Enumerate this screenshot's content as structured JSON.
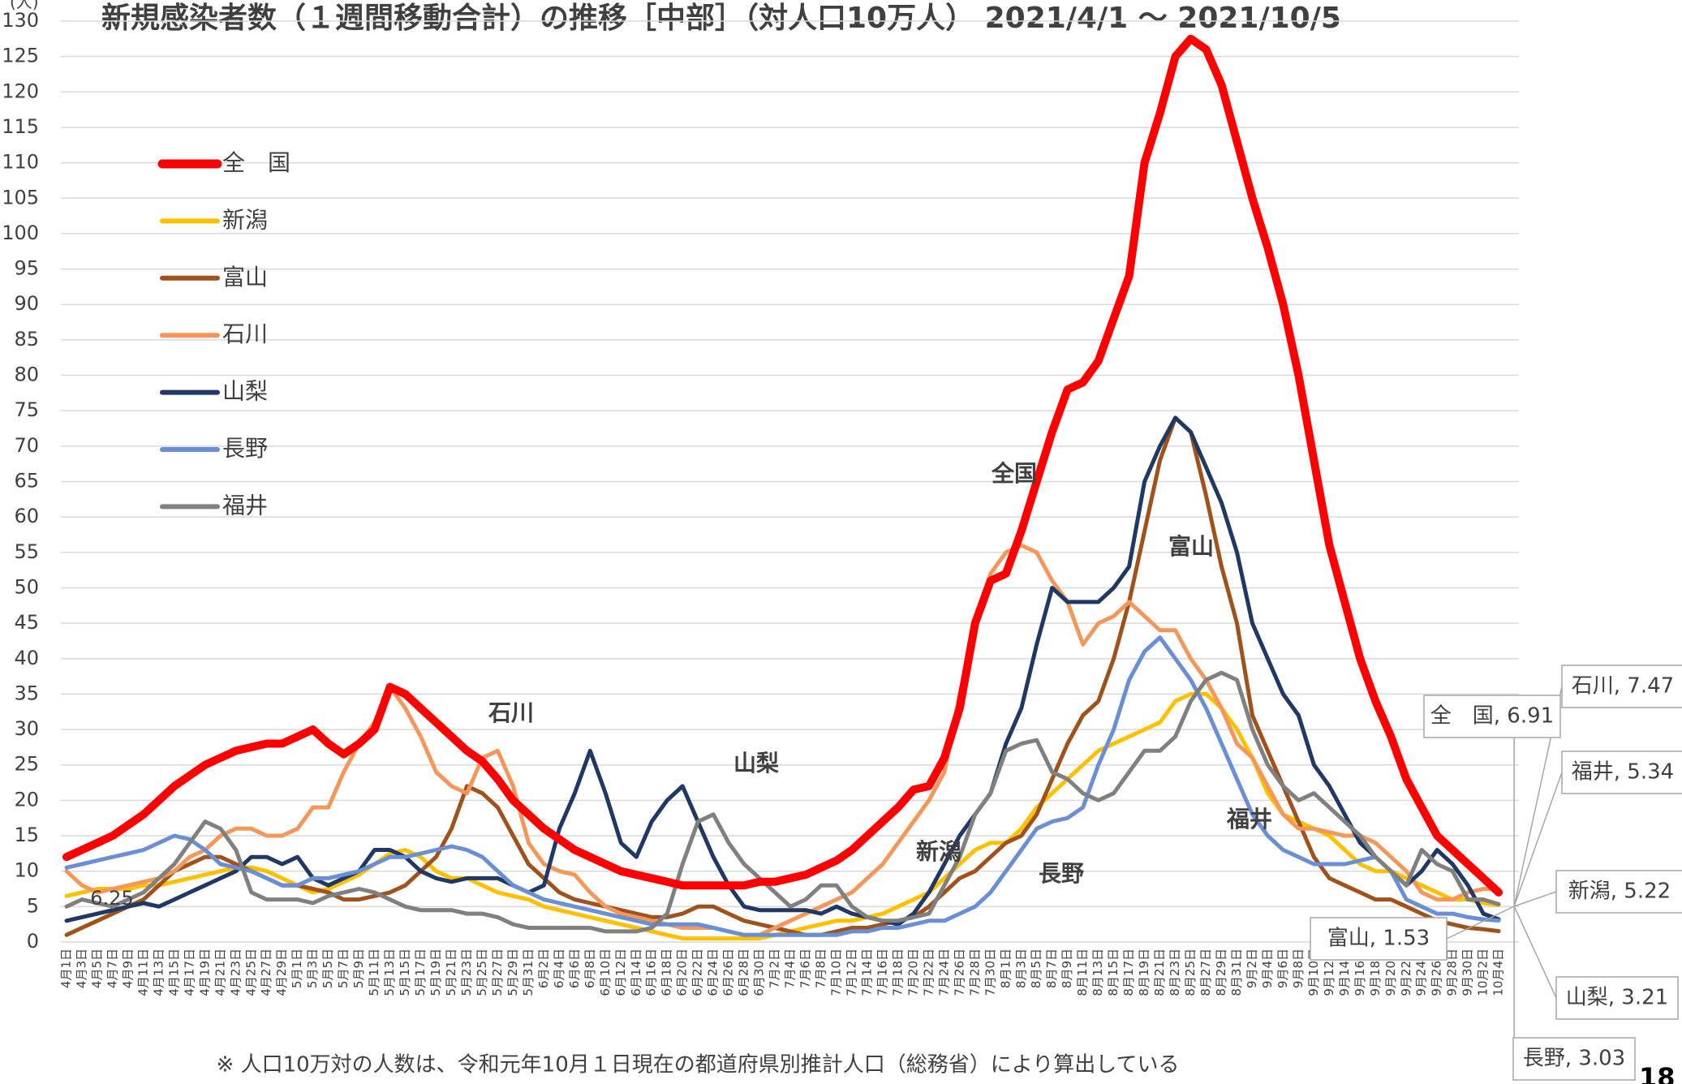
{
  "chart_data": {
    "type": "line",
    "title": "新規感染者数（１週間移動合計）の推移［中部］（対人口10万人） 2021/4/1 ～ 2021/10/5",
    "y_label": "(人)",
    "footnote": "※ 人口10万対の人数は、令和元年10月１日現在の都道府県別推計人口（総務省）により算出している",
    "page_number": "18",
    "categories": [
      "4月1日",
      "4月3日",
      "4月5日",
      "4月7日",
      "4月9日",
      "4月11日",
      "4月13日",
      "4月15日",
      "4月17日",
      "4月19日",
      "4月21日",
      "4月23日",
      "4月25日",
      "4月27日",
      "4月29日",
      "5月1日",
      "5月3日",
      "5月5日",
      "5月7日",
      "5月9日",
      "5月11日",
      "5月13日",
      "5月15日",
      "5月17日",
      "5月19日",
      "5月21日",
      "5月23日",
      "5月25日",
      "5月27日",
      "5月29日",
      "5月31日",
      "6月2日",
      "6月4日",
      "6月6日",
      "6月8日",
      "6月10日",
      "6月12日",
      "6月14日",
      "6月16日",
      "6月18日",
      "6月20日",
      "6月22日",
      "6月24日",
      "6月26日",
      "6月28日",
      "6月30日",
      "7月2日",
      "7月4日",
      "7月6日",
      "7月8日",
      "7月10日",
      "7月12日",
      "7月14日",
      "7月16日",
      "7月18日",
      "7月20日",
      "7月22日",
      "7月24日",
      "7月26日",
      "7月28日",
      "7月30日",
      "8月1日",
      "8月3日",
      "8月5日",
      "8月7日",
      "8月9日",
      "8月11日",
      "8月13日",
      "8月15日",
      "8月17日",
      "8月19日",
      "8月21日",
      "8月23日",
      "8月25日",
      "8月27日",
      "8月29日",
      "8月31日",
      "9月2日",
      "9月4日",
      "9月6日",
      "9月8日",
      "9月10日",
      "9月12日",
      "9月14日",
      "9月16日",
      "9月18日",
      "9月20日",
      "9月22日",
      "9月24日",
      "9月26日",
      "9月28日",
      "9月30日",
      "10月2日",
      "10月4日"
    ],
    "ylim": [
      0,
      130
    ],
    "yticks": [
      0,
      5,
      10,
      15,
      20,
      25,
      30,
      35,
      40,
      45,
      50,
      55,
      60,
      65,
      70,
      75,
      80,
      85,
      90,
      95,
      100,
      105,
      110,
      115,
      120,
      125,
      130
    ],
    "grid": true,
    "series": [
      {
        "name": "全　国",
        "color": "#ff0000",
        "width": 10,
        "values": [
          12,
          13,
          14,
          15,
          16.5,
          18,
          20,
          22,
          23.5,
          25,
          26,
          27,
          27.5,
          28,
          28,
          29,
          30,
          28,
          26.5,
          28,
          30,
          36,
          35,
          33,
          31,
          29,
          27,
          25.5,
          23,
          20,
          18,
          16,
          14.5,
          13,
          12,
          11,
          10,
          9.5,
          9,
          8.5,
          8,
          8,
          8,
          8,
          8,
          8.5,
          8.5,
          9,
          9.5,
          10.5,
          11.5,
          13,
          15,
          17,
          19,
          21.5,
          22,
          26,
          33,
          45,
          51,
          52,
          58,
          65,
          72,
          78,
          79,
          82,
          88,
          94,
          110,
          117,
          125,
          127.5,
          126,
          121,
          113,
          105,
          98,
          90,
          80,
          68,
          56,
          48,
          40,
          34,
          29,
          23,
          19,
          15,
          13,
          11,
          9,
          7
        ]
      },
      {
        "name": "新潟",
        "color": "#ffc000",
        "width": 5,
        "values": [
          6.5,
          7,
          7.5,
          7.5,
          7.5,
          8,
          8,
          8.5,
          9,
          9.5,
          10,
          10.5,
          10.5,
          10,
          9,
          8,
          7,
          7.5,
          8.5,
          9.5,
          11,
          12.5,
          13,
          12,
          10,
          9,
          9,
          8,
          7,
          6.5,
          6,
          5,
          4.5,
          4,
          3.5,
          3,
          2.5,
          2,
          1.5,
          1,
          0.5,
          0.5,
          0.5,
          0.5,
          0.5,
          0.5,
          1,
          1.5,
          2,
          2.5,
          3,
          3,
          3.5,
          4,
          5,
          6,
          7,
          9,
          11,
          13,
          14,
          14,
          16,
          19,
          21,
          23,
          25,
          27,
          28,
          29,
          30,
          31,
          34,
          35,
          35,
          33,
          30,
          26,
          21,
          18,
          17,
          16,
          15,
          13,
          11,
          10,
          10,
          9,
          8,
          7,
          6,
          6,
          5.5,
          5.22
        ]
      },
      {
        "name": "富山",
        "color": "#a0521c",
        "width": 5,
        "values": [
          1,
          2,
          3,
          4,
          5,
          6,
          8,
          10,
          11,
          12,
          12,
          11,
          10,
          9,
          8,
          8,
          7.5,
          7,
          6,
          6,
          6.5,
          7,
          8,
          10,
          12,
          16,
          22,
          21,
          19,
          15,
          11,
          9,
          7,
          6,
          5.5,
          5,
          4.5,
          4,
          3.5,
          3.5,
          4,
          5,
          5,
          4,
          3,
          2.5,
          2,
          1.5,
          1,
          1,
          1.5,
          2,
          2,
          2.5,
          3,
          3.5,
          5,
          7,
          9,
          10,
          12,
          14,
          15,
          18,
          23,
          28,
          32,
          34,
          40,
          48,
          58,
          68,
          74,
          72,
          63,
          53,
          45,
          32,
          27,
          22,
          17,
          12,
          9,
          8,
          7,
          6,
          6,
          5,
          4,
          3,
          2.5,
          2,
          1.8,
          1.53
        ]
      },
      {
        "name": "石川",
        "color": "#f4975a",
        "width": 5,
        "values": [
          10,
          8,
          7,
          7.5,
          8,
          8.5,
          9,
          10,
          12,
          13,
          15,
          16,
          16,
          15,
          15,
          16,
          19,
          19,
          24,
          28,
          31,
          36,
          33,
          29,
          24,
          22,
          21,
          26,
          27,
          22,
          14,
          11,
          10,
          9.5,
          7,
          5,
          4,
          3.5,
          3,
          2.5,
          2,
          2,
          2,
          1.5,
          1,
          1,
          2,
          3,
          4,
          5,
          6,
          7,
          9,
          11,
          14,
          17,
          20,
          24,
          35,
          44,
          52,
          55,
          56,
          55,
          51,
          48,
          42,
          45,
          46,
          48,
          46,
          44,
          44,
          40,
          37,
          33,
          28,
          26,
          22,
          18,
          16,
          16,
          15.5,
          15,
          15,
          14,
          12,
          10,
          7,
          6,
          6,
          7,
          7.5,
          7.47
        ]
      },
      {
        "name": "山梨",
        "color": "#1f3864",
        "width": 5,
        "values": [
          3,
          3.5,
          4,
          4.5,
          5,
          5.5,
          5,
          6,
          7,
          8,
          9,
          10,
          12,
          12,
          11,
          12,
          9,
          8,
          9,
          10,
          13,
          13,
          12,
          10,
          9,
          8.5,
          9,
          9,
          9,
          8,
          7,
          8,
          16,
          21,
          27,
          21,
          14,
          12,
          17,
          20,
          22,
          17,
          12,
          8,
          5,
          4.5,
          4.5,
          4.5,
          4.5,
          4,
          5,
          4,
          3.5,
          3,
          2.5,
          4,
          7,
          11,
          15,
          18,
          21,
          28,
          33,
          42,
          50,
          48,
          48,
          48,
          50,
          53,
          65,
          70,
          74,
          72,
          67,
          62,
          55,
          45,
          40,
          35,
          32,
          25,
          22,
          18,
          14,
          12,
          10,
          8,
          10,
          13,
          11,
          8,
          4,
          3.21
        ]
      },
      {
        "name": "長野",
        "color": "#6a8fd4",
        "width": 5,
        "values": [
          10.5,
          11,
          11.5,
          12,
          12.5,
          13,
          14,
          15,
          14.5,
          13,
          11,
          10.5,
          10,
          9,
          8,
          8,
          9,
          9,
          9.5,
          10,
          11,
          12,
          12,
          12.5,
          13,
          13.5,
          13,
          12,
          10,
          8,
          7,
          6,
          5.5,
          5,
          4.5,
          4,
          3.5,
          3,
          2.5,
          2.5,
          2.5,
          2.5,
          2,
          1.5,
          1,
          1,
          1,
          1,
          1,
          1,
          1,
          1.5,
          1.5,
          2,
          2,
          2.5,
          3,
          3,
          4,
          5,
          7,
          10,
          13,
          16,
          17,
          17.5,
          19,
          25,
          30,
          37,
          41,
          43,
          40,
          37,
          33,
          28,
          23,
          18,
          15,
          13,
          12,
          11,
          11,
          11,
          11.5,
          12,
          10,
          6,
          5,
          4,
          4,
          3.5,
          3.2,
          3.03
        ]
      },
      {
        "name": "福井",
        "color": "#808080",
        "width": 5,
        "values": [
          5,
          6,
          5.5,
          5,
          6,
          7,
          9,
          11,
          14,
          17,
          16,
          13,
          7,
          6,
          6,
          6,
          5.5,
          6.5,
          7,
          7.5,
          7,
          6,
          5,
          4.5,
          4.5,
          4.5,
          4,
          4,
          3.5,
          2.5,
          2,
          2,
          2,
          2,
          2,
          1.5,
          1.5,
          1.5,
          2,
          4,
          11,
          17,
          18,
          14,
          11,
          9,
          7,
          5,
          6,
          8,
          8,
          5,
          3.5,
          3,
          3,
          3.5,
          4,
          8,
          12,
          18,
          21,
          27,
          28,
          28.5,
          24,
          23,
          21,
          20,
          21,
          24,
          27,
          27,
          29,
          34,
          37,
          38,
          37,
          30,
          25,
          22,
          20,
          21,
          19,
          17,
          15,
          12,
          10,
          8,
          13,
          11,
          10,
          6,
          6,
          5.34
        ]
      }
    ],
    "annotations": [
      {
        "text": "石川",
        "color": "#f4975a"
      },
      {
        "text": "山梨",
        "color": "#1f3864"
      },
      {
        "text": "全国",
        "color": "#ff0000"
      },
      {
        "text": "富山",
        "color": "#a0521c"
      },
      {
        "text": "新潟",
        "color": "#ffc000"
      },
      {
        "text": "長野",
        "color": "#6a8fd4"
      },
      {
        "text": "福井",
        "color": "#808080"
      },
      {
        "text": "6.25",
        "color": "#404040"
      }
    ],
    "callouts": [
      "石川, 7.47",
      "全　国, 6.91",
      "福井, 5.34",
      "新潟, 5.22",
      "富山, 1.53",
      "山梨, 3.21",
      "長野, 3.03"
    ]
  }
}
